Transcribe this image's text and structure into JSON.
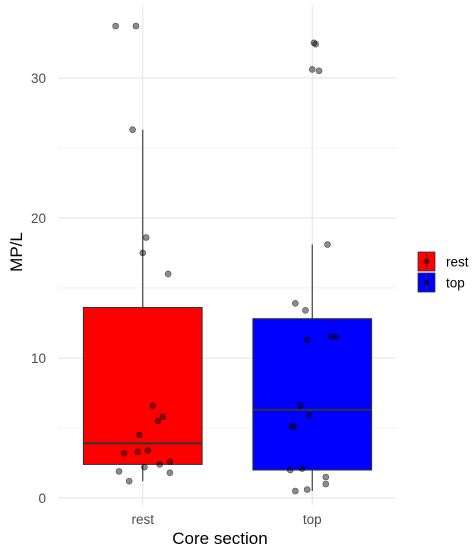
{
  "chart_data": {
    "type": "box",
    "xlabel": "Core section",
    "ylabel": "MP/L",
    "categories": [
      "rest",
      "top"
    ],
    "ylim": [
      -0.5,
      35.2
    ],
    "y_ticks": [
      0,
      10,
      20,
      30
    ],
    "grid": true,
    "legend": {
      "position": "right",
      "entries": [
        {
          "label": "rest",
          "color": "#ff0000"
        },
        {
          "label": "top",
          "color": "#0000ff"
        }
      ]
    },
    "boxes": [
      {
        "group": "rest",
        "color": "#ff0000",
        "whisker_low": 1.2,
        "q1": 2.4,
        "median": 3.9,
        "q3": 13.6,
        "whisker_high": 26.3,
        "points": [
          {
            "dx": -0.04,
            "y": 33.7
          },
          {
            "dx": -0.16,
            "y": 33.7
          },
          {
            "dx": -0.06,
            "y": 26.3
          },
          {
            "dx": 0.02,
            "y": 18.6
          },
          {
            "dx": 0.0,
            "y": 17.5
          },
          {
            "dx": 0.15,
            "y": 16.0
          },
          {
            "dx": 0.06,
            "y": 6.6
          },
          {
            "dx": 0.12,
            "y": 5.8
          },
          {
            "dx": 0.09,
            "y": 5.5
          },
          {
            "dx": -0.02,
            "y": 4.5
          },
          {
            "dx": 0.03,
            "y": 3.4
          },
          {
            "dx": -0.03,
            "y": 3.3
          },
          {
            "dx": -0.11,
            "y": 3.2
          },
          {
            "dx": 0.16,
            "y": 2.6
          },
          {
            "dx": 0.1,
            "y": 2.4
          },
          {
            "dx": 0.01,
            "y": 2.2
          },
          {
            "dx": -0.14,
            "y": 1.9
          },
          {
            "dx": 0.16,
            "y": 1.8
          },
          {
            "dx": -0.08,
            "y": 1.2
          }
        ]
      },
      {
        "group": "top",
        "color": "#0000ff",
        "whisker_low": 0.5,
        "q1": 2.0,
        "median": 6.3,
        "q3": 12.8,
        "whisker_high": 18.1,
        "points": [
          {
            "dx": 0.01,
            "y": 32.5
          },
          {
            "dx": 0.02,
            "y": 32.4
          },
          {
            "dx": 0.0,
            "y": 30.6
          },
          {
            "dx": 0.04,
            "y": 30.5
          },
          {
            "dx": 0.09,
            "y": 18.1
          },
          {
            "dx": -0.1,
            "y": 13.9
          },
          {
            "dx": -0.04,
            "y": 13.4
          },
          {
            "dx": 0.14,
            "y": 11.5
          },
          {
            "dx": 0.11,
            "y": 11.5
          },
          {
            "dx": -0.03,
            "y": 11.3
          },
          {
            "dx": -0.07,
            "y": 6.6
          },
          {
            "dx": -0.02,
            "y": 5.9
          },
          {
            "dx": -0.11,
            "y": 5.1
          },
          {
            "dx": -0.12,
            "y": 5.1
          },
          {
            "dx": -0.06,
            "y": 2.1
          },
          {
            "dx": -0.13,
            "y": 2.0
          },
          {
            "dx": 0.08,
            "y": 1.5
          },
          {
            "dx": 0.08,
            "y": 1.0
          },
          {
            "dx": -0.03,
            "y": 0.6
          },
          {
            "dx": -0.1,
            "y": 0.5
          }
        ]
      }
    ]
  }
}
